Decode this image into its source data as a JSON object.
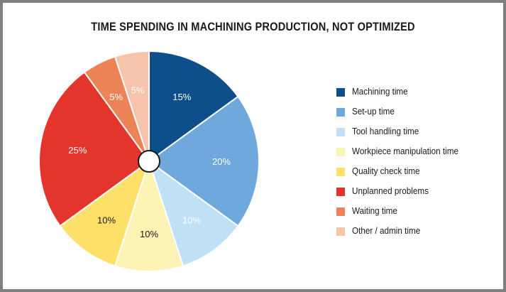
{
  "chart_data": {
    "type": "pie",
    "title": "TIME SPENDING IN MACHINING PRODUCTION, NOT OPTIMIZED",
    "unit": "%",
    "legend_position": "right",
    "slices": [
      {
        "label": "Machining time",
        "value": 15,
        "display": "15%",
        "color": "#0d4f8b",
        "text_color": "#ffffff"
      },
      {
        "label": "Set-up time",
        "value": 20,
        "display": "20%",
        "color": "#6ea8dc",
        "text_color": "#ffffff"
      },
      {
        "label": "Tool handling time",
        "value": 10,
        "display": "10%",
        "color": "#bfe1f6",
        "text_color": "#ffffff"
      },
      {
        "label": "Workpiece manipulation time",
        "value": 10,
        "display": "10%",
        "color": "#fdf3b5",
        "text_color": "#1a1a1a"
      },
      {
        "label": "Quality check time",
        "value": 10,
        "display": "10%",
        "color": "#fde06a",
        "text_color": "#1a1a1a"
      },
      {
        "label": "Unplanned problems",
        "value": 25,
        "display": "25%",
        "color": "#e3352b",
        "text_color": "#ffffff"
      },
      {
        "label": "Waiting time",
        "value": 5,
        "display": "5%",
        "color": "#ec8458",
        "text_color": "#ffffff"
      },
      {
        "label": "Other / admin time",
        "value": 5,
        "display": "5%",
        "color": "#f7c3ad",
        "text_color": "#ffffff"
      }
    ]
  }
}
